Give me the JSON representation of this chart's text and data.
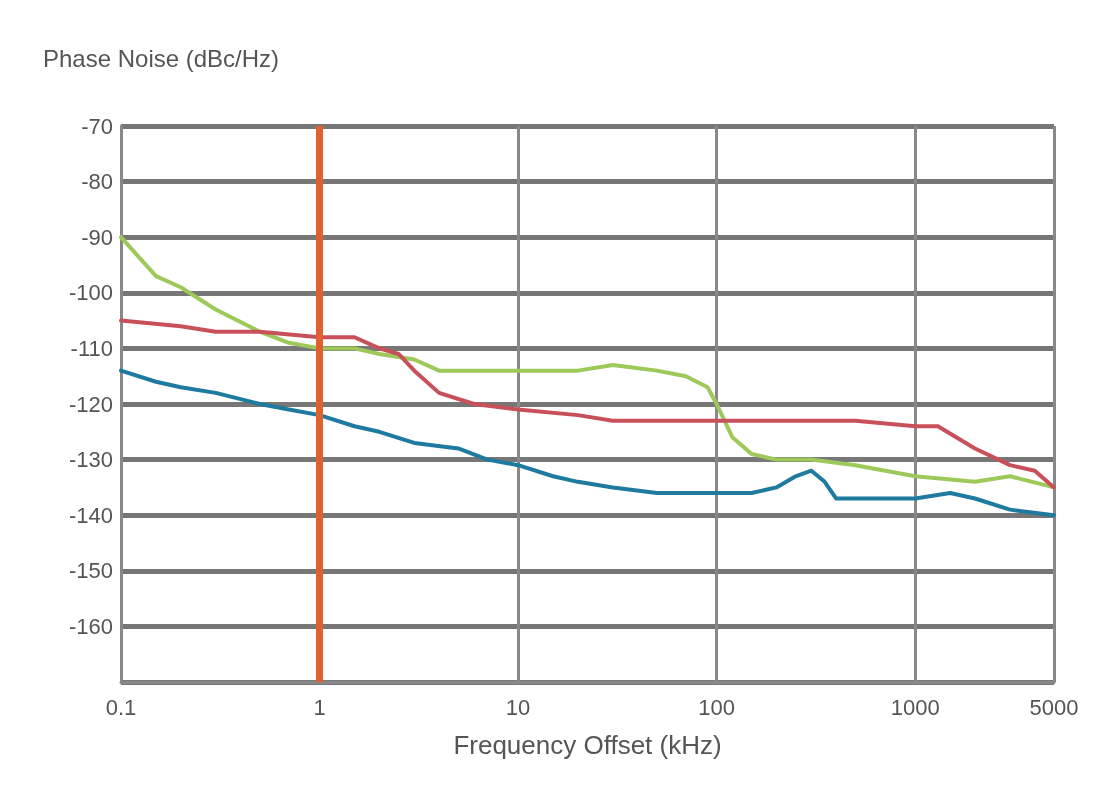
{
  "chart_data": {
    "type": "line",
    "ylabel": "Phase Noise (dBc/Hz)",
    "xlabel": "Frequency Offset (kHz)",
    "log": "x",
    "grid": true,
    "marker": "none",
    "line_style": "solid",
    "xlim": [
      0.1,
      5000
    ],
    "xticks": [
      0.1,
      1,
      10,
      100,
      1000,
      5000
    ],
    "ylim": [
      -170,
      -70
    ],
    "yticks": [
      -70,
      -80,
      -90,
      -100,
      -110,
      -120,
      -130,
      -140,
      -150,
      -160,
      {
        "value": -170,
        "label": null
      }
    ],
    "series": [
      {
        "color": "#9dc85a",
        "x": [
          0.1,
          0.15,
          0.2,
          0.3,
          0.5,
          0.7,
          1,
          1.5,
          2,
          3,
          4,
          5,
          10,
          20,
          30,
          50,
          70,
          90,
          100,
          120,
          150,
          200,
          300,
          500,
          1000,
          2000,
          3000,
          5000
        ],
        "values": [
          -90,
          -97,
          -99,
          -103,
          -107,
          -109,
          -110,
          -110,
          -111,
          -112,
          -114,
          -114,
          -114,
          -114,
          -113,
          -114,
          -115,
          -117,
          -120,
          -126,
          -129,
          -130,
          -130,
          -131,
          -133,
          -134,
          -133,
          -135
        ]
      },
      {
        "color": "#c8505a",
        "x": [
          0.1,
          0.2,
          0.3,
          0.5,
          1,
          1.5,
          2,
          2.5,
          3,
          4,
          6,
          10,
          20,
          30,
          50,
          100,
          200,
          500,
          1000,
          1300,
          2000,
          3000,
          4000,
          5000
        ],
        "values": [
          -105,
          -106,
          -107,
          -107,
          -108,
          -108,
          -110,
          -111,
          -114,
          -118,
          -120,
          -121,
          -122,
          -123,
          -123,
          -123,
          -123,
          -123,
          -124,
          -124,
          -128,
          -131,
          -132,
          -135
        ]
      },
      {
        "color": "#1f7aa0",
        "x": [
          0.1,
          0.15,
          0.2,
          0.3,
          0.5,
          0.7,
          1,
          1.5,
          2,
          3,
          5,
          7,
          10,
          15,
          20,
          30,
          50,
          100,
          150,
          200,
          250,
          300,
          350,
          400,
          600,
          1000,
          1500,
          2000,
          3000,
          5000
        ],
        "values": [
          -114,
          -116,
          -117,
          -118,
          -120,
          -121,
          -122,
          -124,
          -125,
          -127,
          -128,
          -130,
          -131,
          -133,
          -134,
          -135,
          -136,
          -136,
          -136,
          -135,
          -133,
          -132,
          -134,
          -137,
          -137,
          -137,
          -136,
          -137,
          -139,
          -140
        ]
      }
    ],
    "ref_lines": [
      {
        "axis": "x",
        "value": 1,
        "color": "#e0602e",
        "line_style": "solid"
      }
    ]
  }
}
